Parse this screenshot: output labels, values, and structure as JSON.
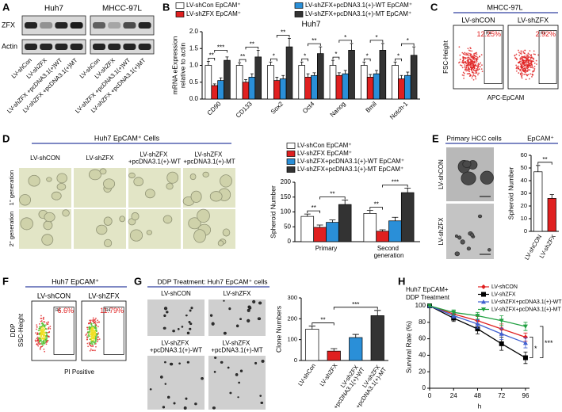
{
  "panels": {
    "A": {
      "label": "A",
      "cell_lines": [
        "Huh7",
        "MHCC-97L"
      ],
      "proteins": [
        "ZFX",
        "Actin"
      ],
      "lanes": [
        "LV-shCon",
        "LV-shZFX",
        "LV-shZFX +pcDNA3.1(+)WT",
        "LV-shZFX +pcDNA3.1(+)MT"
      ]
    },
    "C": {
      "label": "C",
      "cell_line": "MHCC-97L",
      "groups": [
        "LV-shCON",
        "LV-shZFX"
      ],
      "gate": "R4",
      "percents": [
        "12.25%",
        "2.92%"
      ],
      "y_label": "FSC-Height",
      "x_label": "APC-EpCAM"
    },
    "D": {
      "label": "D",
      "title": "Huh7 EpCAM⁺ Cells",
      "columns": [
        "LV-shCON",
        "LV-shZFX",
        "LV-shZFX +pcDNA3.1(+)-WT",
        "LV-shZFX +pcDNA3.1(+)-MT"
      ],
      "rows": [
        "1° generation",
        "2° generation"
      ]
    },
    "E": {
      "label": "E",
      "title": "Primary HCC cells",
      "marker": "EpCAM⁺",
      "groups": [
        "LV-shCON",
        "LV-shZFX"
      ]
    },
    "F": {
      "label": "F",
      "title": "Huh7 EpCAM⁺",
      "groups": [
        "LV-shCON",
        "LV-shZFX"
      ],
      "gate": "R4",
      "percents": [
        "6.6%",
        "11.79%"
      ],
      "y_label": [
        "DDP",
        "SSC-Height"
      ],
      "x_label": "PI Positive"
    },
    "G": {
      "label": "G",
      "title": "DDP Treatment: Huh7 EpCAM⁺ cells",
      "groups": [
        "LV-shCON",
        "LV-shZFX",
        "LV-shZFX +pcDNA3.1(+)-WT",
        "LV-shZFX +pcDNA3.1(+)-MT"
      ]
    }
  },
  "chart_data": [
    {
      "type": "bar",
      "panel": "B",
      "title": "Huh7",
      "y_label": [
        "mRNA eExpression",
        "relative to actin"
      ],
      "categories": [
        "CD90",
        "CD133",
        "Sox2",
        "Oct4",
        "Nanog",
        "Bmil",
        "Notch-1"
      ],
      "series": [
        {
          "name": "LV-shCon  EpCAM⁺",
          "color": "#ffffff",
          "values": [
            1.0,
            1.0,
            1.0,
            1.0,
            1.0,
            1.0,
            1.0
          ],
          "errors": [
            0.12,
            0.08,
            0.1,
            0.1,
            0.15,
            0.1,
            0.1
          ]
        },
        {
          "name": "LV-shZFX  EpCAM⁺",
          "color": "#e02020",
          "values": [
            0.4,
            0.5,
            0.55,
            0.65,
            0.7,
            0.65,
            0.6
          ],
          "errors": [
            0.05,
            0.08,
            0.1,
            0.1,
            0.08,
            0.08,
            0.1
          ]
        },
        {
          "name": "LV-shZFX+pcDNA3.1(+)-WT  EpCAM⁺",
          "color": "#2a8fd8",
          "values": [
            0.55,
            0.65,
            0.6,
            0.7,
            0.75,
            0.75,
            0.7
          ],
          "errors": [
            0.08,
            0.1,
            0.1,
            0.08,
            0.1,
            0.1,
            0.1
          ]
        },
        {
          "name": "LV-shZFX+pcDNA3.1(+)-MT  EpCAM⁺",
          "color": "#333333",
          "values": [
            1.15,
            1.25,
            1.55,
            1.35,
            1.45,
            1.45,
            1.3
          ],
          "errors": [
            0.1,
            0.2,
            0.25,
            0.2,
            0.2,
            0.2,
            0.25
          ]
        }
      ],
      "ylim": [
        0,
        2
      ],
      "yticks": [
        {
          "value": 0,
          "label": "0.0"
        },
        {
          "value": 0.5,
          "label": "0.5"
        },
        {
          "value": 1,
          "label": "1.0"
        },
        {
          "value": 1.5,
          "label": "1.5"
        },
        {
          "value": 2,
          "label": "2.0"
        }
      ],
      "annotations": [
        [
          "**",
          "***"
        ],
        [
          "**",
          "**"
        ],
        [
          "*",
          "**"
        ],
        [
          "*",
          "**"
        ],
        [
          "*",
          "*"
        ],
        [
          "*",
          "*"
        ],
        [
          "*",
          "*"
        ]
      ]
    },
    {
      "type": "bar",
      "panel": "D",
      "y_label": "Spheroid Number",
      "categories": [
        "Primary",
        "Second generation"
      ],
      "series": [
        {
          "name": "LV-shCon  EpCAM⁺",
          "color": "#ffffff",
          "values": [
            85,
            95
          ],
          "errors": [
            8,
            10
          ]
        },
        {
          "name": "LV-shZFX  EpCAM⁺",
          "color": "#e02020",
          "values": [
            48,
            35
          ],
          "errors": [
            8,
            5
          ]
        },
        {
          "name": "LV-shZFX+pcDNA3.1(+)-WT  EpCAM⁺",
          "color": "#2a8fd8",
          "values": [
            65,
            70
          ],
          "errors": [
            8,
            12
          ]
        },
        {
          "name": "LV-shZFX+pcDNA3.1(+)-MT  EpCAM⁺",
          "color": "#333333",
          "values": [
            125,
            165
          ],
          "errors": [
            15,
            15
          ]
        }
      ],
      "ylim": [
        0,
        200
      ],
      "yticks": [
        0,
        50,
        100,
        150,
        200
      ],
      "annotations": [
        [
          "**",
          "**"
        ],
        [
          "**",
          "***"
        ]
      ]
    },
    {
      "type": "bar",
      "panel": "E",
      "y_label": "Spheroid Number",
      "categories": [
        "LV-shCON",
        "LV-shZFX"
      ],
      "values": [
        47,
        26
      ],
      "errors": [
        5,
        3
      ],
      "colors": [
        "#ffffff",
        "#e02020"
      ],
      "ylim": [
        0,
        60
      ],
      "yticks": [
        0,
        10,
        20,
        30,
        40,
        50,
        60
      ],
      "annotations": [
        "**"
      ]
    },
    {
      "type": "bar",
      "panel": "G",
      "y_label": "Clone Numbers",
      "categories": [
        "LV-shCon",
        "LV-shZFX",
        "LV-shZFX +pcDNA3.1(+)-WT",
        "LV-shZFX +pcDNA3.1(+)-MT"
      ],
      "values": [
        150,
        45,
        110,
        215
      ],
      "errors": [
        15,
        12,
        15,
        25
      ],
      "colors": [
        "#ffffff",
        "#e02020",
        "#2a8fd8",
        "#333333"
      ],
      "ylim": [
        0,
        300
      ],
      "yticks": [
        0,
        100,
        200,
        300
      ],
      "annotations": [
        "**",
        "***"
      ]
    },
    {
      "type": "line",
      "panel": "H",
      "title": [
        "Huh7 EpCAM+",
        "DDP Treatment"
      ],
      "x_label": "h",
      "y_label": "Survival Rate (%)",
      "x": [
        0,
        24,
        48,
        72,
        96
      ],
      "xlim": [
        0,
        100
      ],
      "xticks": [
        0,
        24,
        48,
        72,
        96
      ],
      "ylim": [
        0,
        100
      ],
      "yticks": [
        0,
        20,
        40,
        60,
        80,
        100
      ],
      "legend": "upper right",
      "series": [
        {
          "name": "LV-shCON",
          "color": "#e02020",
          "marker": "diamond",
          "values": [
            100,
            90,
            82,
            72,
            62
          ],
          "errors": [
            0,
            3,
            5,
            6,
            5
          ]
        },
        {
          "name": "LV-shZFX",
          "color": "#000000",
          "marker": "square",
          "values": [
            100,
            85,
            72,
            54,
            37
          ],
          "errors": [
            0,
            4,
            6,
            8,
            7
          ]
        },
        {
          "name": "LV-shZFX+pcDNA3.1(+)-WT",
          "color": "#4060d0",
          "marker": "triangle",
          "values": [
            100,
            88,
            78,
            66,
            55
          ],
          "errors": [
            0,
            3,
            5,
            7,
            6
          ]
        },
        {
          "name": "LV-shZFX+pcDNA3.1(+)-MT",
          "color": "#20a040",
          "marker": "triangle-down",
          "values": [
            100,
            92,
            88,
            82,
            75
          ],
          "errors": [
            0,
            3,
            4,
            6,
            5
          ]
        }
      ],
      "annotations": [
        "*",
        "***"
      ]
    }
  ]
}
